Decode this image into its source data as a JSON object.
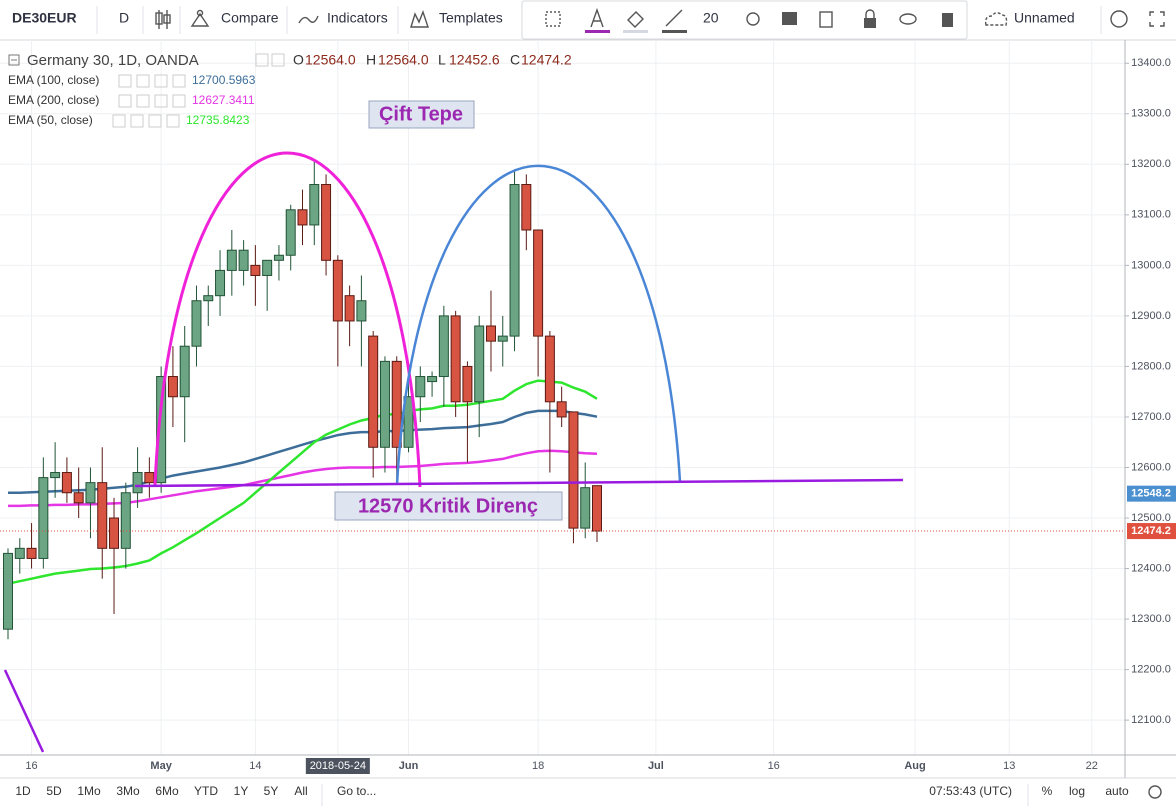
{
  "toolbar": {
    "symbol": "DE30EUR",
    "interval": "D",
    "compare": "Compare",
    "indicators": "Indicators",
    "templates": "Templates",
    "font_size": "20",
    "layout": "Unnamed"
  },
  "chart_data": {
    "type": "candlestick",
    "title": "Germany 30, 1D, OANDA",
    "ohlc_legend": [
      {
        "label": "O",
        "text": "12564.0"
      },
      {
        "label": "H",
        "text": "12564.0"
      },
      {
        "label": "L",
        "text": "12452.6"
      },
      {
        "label": "C",
        "text": "12474.2"
      }
    ],
    "categories": [
      null,
      null,
      "16",
      null,
      null,
      null,
      null,
      null,
      null,
      null,
      null,
      null,
      null,
      "May",
      null,
      null,
      null,
      null,
      null,
      null,
      null,
      "14",
      null,
      null,
      null,
      null,
      null,
      null,
      "2018-05-24",
      null,
      null,
      null,
      null,
      null,
      "Jun",
      null,
      null,
      null,
      null,
      null,
      null,
      null,
      null,
      null,
      null,
      "18",
      null,
      null,
      null,
      null,
      null,
      null,
      null,
      null,
      null,
      "Jul",
      null,
      null,
      null,
      null,
      null,
      null,
      null,
      null,
      null,
      "16",
      null,
      null,
      null,
      null,
      null,
      null,
      null,
      null,
      null,
      null,
      null,
      "Aug",
      null,
      null,
      null,
      null,
      null,
      null,
      null,
      "13",
      null,
      null,
      null,
      null,
      null,
      null,
      "22"
    ],
    "open": [
      12280,
      12420,
      12440,
      12420,
      12580,
      12590,
      12550,
      12530,
      12570,
      12500,
      12440,
      12550,
      12590,
      12570,
      12780,
      12740,
      12840,
      12930,
      12940,
      12990,
      12990,
      13000,
      12980,
      13010,
      13020,
      13110,
      13080,
      13160,
      13010,
      12940,
      12890,
      12860,
      12640,
      12810,
      12640,
      12740,
      12770,
      12780,
      12900,
      12800,
      12730,
      12880,
      12850,
      12860,
      13160,
      13070,
      12860,
      12730,
      12710,
      12480,
      12564,
      null,
      null,
      null,
      null,
      null,
      null,
      null,
      null,
      null,
      null,
      null,
      null,
      null,
      null,
      null,
      null,
      null,
      null,
      null,
      null,
      null,
      null,
      null,
      null,
      null,
      null,
      null,
      null,
      null,
      null,
      null,
      null,
      null,
      null,
      null,
      null,
      null,
      null,
      null,
      null,
      null,
      null
    ],
    "high": [
      12440,
      12460,
      12490,
      12620,
      12650,
      12620,
      12600,
      12600,
      12640,
      12540,
      12570,
      12640,
      12620,
      12800,
      12840,
      12880,
      12960,
      12960,
      13030,
      13070,
      13050,
      13040,
      13010,
      13040,
      13120,
      13150,
      13210,
      13180,
      13020,
      12960,
      12980,
      12870,
      12820,
      12820,
      12770,
      12800,
      12790,
      12920,
      12910,
      12810,
      12900,
      12950,
      12900,
      13190,
      13180,
      13070,
      12870,
      12760,
      12710,
      12610,
      12564,
      null,
      null,
      null,
      null,
      null,
      null,
      null,
      null,
      null,
      null,
      null,
      null,
      null,
      null,
      null,
      null,
      null,
      null,
      null,
      null,
      null,
      null,
      null,
      null,
      null,
      null,
      null,
      null,
      null,
      null,
      null,
      null,
      null,
      null,
      null,
      null,
      null,
      null,
      null,
      null,
      null,
      null
    ],
    "low": [
      12260,
      12390,
      12400,
      12400,
      12540,
      12530,
      12500,
      12460,
      12380,
      12310,
      12400,
      12520,
      12540,
      12550,
      12680,
      12650,
      12800,
      12880,
      12900,
      12940,
      12960,
      12920,
      12910,
      12970,
      12990,
      13040,
      13040,
      12980,
      12800,
      12840,
      12800,
      12580,
      12590,
      12570,
      12630,
      12690,
      12740,
      12720,
      12700,
      12610,
      12660,
      12790,
      12800,
      12830,
      13030,
      12780,
      12590,
      12680,
      12450,
      12460,
      12452.6,
      null,
      null,
      null,
      null,
      null,
      null,
      null,
      null,
      null,
      null,
      null,
      null,
      null,
      null,
      null,
      null,
      null,
      null,
      null,
      null,
      null,
      null,
      null,
      null,
      null,
      null,
      null,
      null,
      null,
      null,
      null,
      null,
      null,
      null,
      null,
      null,
      null,
      null,
      null,
      null,
      null,
      null
    ],
    "close": [
      12430,
      12440,
      12420,
      12580,
      12590,
      12550,
      12530,
      12570,
      12440,
      12440,
      12550,
      12590,
      12570,
      12780,
      12740,
      12840,
      12930,
      12940,
      12990,
      13030,
      13030,
      12980,
      13010,
      13020,
      13110,
      13080,
      13160,
      13010,
      12890,
      12890,
      12930,
      12640,
      12810,
      12640,
      12740,
      12780,
      12780,
      12900,
      12730,
      12730,
      12880,
      12850,
      12860,
      13160,
      13070,
      12860,
      12730,
      12700,
      12480,
      12560,
      12474.2,
      null,
      null,
      null,
      null,
      null,
      null,
      null,
      null,
      null,
      null,
      null,
      null,
      null,
      null,
      null,
      null,
      null,
      null,
      null,
      null,
      null,
      null,
      null,
      null,
      null,
      null,
      null,
      null,
      null,
      null,
      null,
      null,
      null,
      null,
      null,
      null,
      null,
      null,
      null,
      null,
      null,
      null
    ],
    "up_color": "#6ba583",
    "up_border": "#225437",
    "down_color": "#d75442",
    "down_border": "#5b1a13",
    "series": [
      {
        "name": "EMA (100, close)",
        "color": "#3d6e99",
        "values": [
          12550,
          12550,
          12551,
          12552,
          12553,
          12554,
          12555,
          12556,
          12558,
          12560,
          12562,
          12566,
          12572,
          12578,
          12584,
          12588,
          12592,
          12596,
          12600,
          12605,
          12610,
          12617,
          12624,
          12631,
          12638,
          12645,
          12652,
          12658,
          12664,
          12668,
          12670,
          12670,
          12672,
          12672,
          12674,
          12675,
          12676,
          12678,
          12679,
          12680,
          12683,
          12686,
          12690,
          12700,
          12708,
          12712,
          12712,
          12712,
          12708,
          12705,
          12700.5963,
          null,
          null,
          null,
          null,
          null,
          null,
          null,
          null,
          null,
          null,
          null,
          null,
          null,
          null,
          null,
          null,
          null,
          null,
          null,
          null,
          null,
          null,
          null,
          null,
          null,
          null,
          null,
          null,
          null,
          null,
          null,
          null,
          null,
          null,
          null,
          null,
          null,
          null,
          null,
          null,
          null,
          null
        ]
      },
      {
        "name": "EMA (200, close)",
        "color": "#e535e5",
        "values": [
          12524,
          12524,
          12525,
          12525,
          12526,
          12526,
          12527,
          12527,
          12528,
          12529,
          12530,
          12533,
          12537,
          12541,
          12545,
          12549,
          12553,
          12556,
          12559,
          12562,
          12565,
          12570,
          12575,
          12580,
          12585,
          12590,
          12594,
          12597,
          12599,
          12600,
          12600,
          12600,
          12601,
          12601,
          12602,
          12603,
          12605,
          12607,
          12608,
          12609,
          12611,
          12614,
          12617,
          12623,
          12628,
          12632,
          12633,
          12632,
          12630,
          12628,
          12627.3411,
          null,
          null,
          null,
          null,
          null,
          null,
          null,
          null,
          null,
          null,
          null,
          null,
          null,
          null,
          null,
          null,
          null,
          null,
          null,
          null,
          null,
          null,
          null,
          null,
          null,
          null,
          null,
          null,
          null,
          null,
          null,
          null,
          null,
          null,
          null,
          null,
          null,
          null,
          null,
          null,
          null,
          null
        ]
      },
      {
        "name": "EMA (50, close)",
        "color": "#2ee62e",
        "values": [
          12370,
          12375,
          12380,
          12385,
          12390,
          12393,
          12396,
          12399,
          12400,
          12402,
          12405,
          12410,
          12416,
          12430,
          12442,
          12456,
          12470,
          12485,
          12500,
          12515,
          12530,
          12550,
          12570,
          12590,
          12610,
          12630,
          12650,
          12665,
          12675,
          12685,
          12693,
          12698,
          12705,
          12705,
          12712,
          12715,
          12717,
          12722,
          12722,
          12724,
          12728,
          12732,
          12736,
          12752,
          12765,
          12772,
          12770,
          12768,
          12758,
          12750,
          12735.8423,
          null,
          null,
          null,
          null,
          null,
          null,
          null,
          null,
          null,
          null,
          null,
          null,
          null,
          null,
          null,
          null,
          null,
          null,
          null,
          null,
          null,
          null,
          null,
          null,
          null,
          null,
          null,
          null,
          null,
          null,
          null,
          null,
          null,
          null,
          null,
          null,
          null,
          null,
          null,
          null,
          null,
          null
        ]
      }
    ],
    "ylim": [
      12031,
      13446
    ],
    "yticks": [
      {
        "value": 12100,
        "label": "12100.0"
      },
      {
        "value": 12200,
        "label": "12200.0"
      },
      {
        "value": 12300,
        "label": "12300.0"
      },
      {
        "value": 12400,
        "label": "12400.0"
      },
      {
        "value": 12500,
        "label": "12500.0"
      },
      {
        "value": 12600,
        "label": "12600.0"
      },
      {
        "value": 12700,
        "label": "12700.0"
      },
      {
        "value": 12800,
        "label": "12800.0"
      },
      {
        "value": 12900,
        "label": "12900.0"
      },
      {
        "value": 13000,
        "label": "13000.0"
      },
      {
        "value": 13100,
        "label": "13100.0"
      },
      {
        "value": 13200,
        "label": "13200.0"
      },
      {
        "value": 13300,
        "label": "13300.0"
      },
      {
        "value": 13400,
        "label": "13400.0"
      }
    ],
    "price_tags": [
      {
        "value": 12548.2,
        "color": "#4a8fd0",
        "line": false
      },
      {
        "value": 12474.2,
        "color": "#e0503e",
        "line": true
      }
    ],
    "annotations": [
      "Çift Tepe",
      "12570 Kritik Direnç"
    ],
    "grid": true
  },
  "bottom_bar": {
    "ranges": [
      "1D",
      "5D",
      "1Mo",
      "3Mo",
      "6Mo",
      "YTD",
      "1Y",
      "5Y",
      "All"
    ],
    "goto": "Go to...",
    "clock": "07:53:43 (UTC)",
    "percent": "%",
    "log": "log",
    "auto": "auto"
  }
}
